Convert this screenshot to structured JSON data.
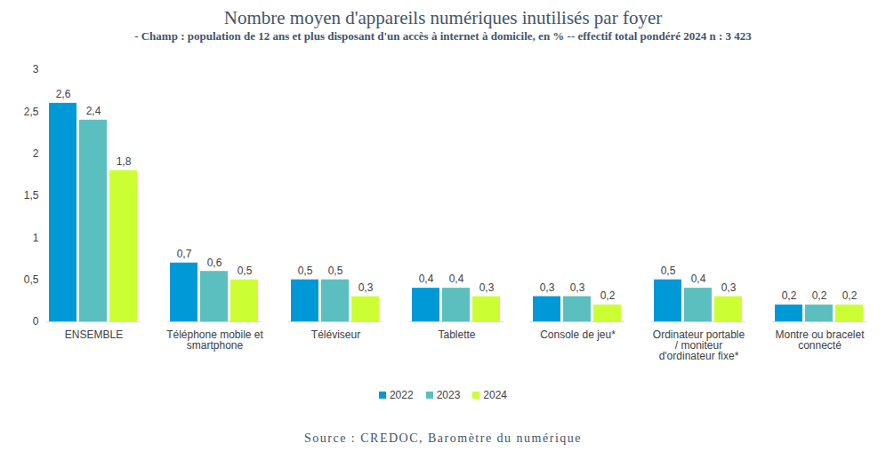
{
  "chart_data": {
    "type": "bar",
    "title": "Nombre moyen d'appareils numériques inutilisés par foyer",
    "subtitle": "- Champ : population de 12 ans et plus disposant d'un accès à internet à domicile, en % -- effectif total pondéré 2024 n : 3 423",
    "source": "Source : CREDOC, Baromètre du numérique",
    "categories": [
      "ENSEMBLE",
      "Téléphone mobile et smartphone",
      "Téléviseur",
      "Tablette",
      "Console de jeu*",
      "Ordinateur portable / moniteur d'ordinateur fixe*",
      "Montre ou bracelet connecté"
    ],
    "series": [
      {
        "name": "2022",
        "color": "#0099d8",
        "values": [
          2.6,
          0.7,
          0.5,
          0.4,
          0.3,
          0.5,
          0.2
        ],
        "value_labels": [
          "2,6",
          "0,7",
          "0,5",
          "0,4",
          "0,3",
          "0,5",
          "0,2"
        ]
      },
      {
        "name": "2023",
        "color": "#5bbfbf",
        "values": [
          2.4,
          0.6,
          0.5,
          0.4,
          0.3,
          0.4,
          0.2
        ],
        "value_labels": [
          "2,4",
          "0,6",
          "0,5",
          "0,4",
          "0,3",
          "0,4",
          "0,2"
        ]
      },
      {
        "name": "2024",
        "color": "#ccff33",
        "values": [
          1.8,
          0.5,
          0.3,
          0.3,
          0.2,
          0.3,
          0.2
        ],
        "value_labels": [
          "1,8",
          "0,5",
          "0,3",
          "0,3",
          "0,2",
          "0,3",
          "0,2"
        ]
      }
    ],
    "ylim": [
      0,
      3
    ],
    "yticks": [
      0,
      {
        "value": 0.5,
        "label": "0,5"
      },
      1,
      {
        "value": 1.5,
        "label": "1,5"
      },
      2,
      {
        "value": 2.5,
        "label": "2,5"
      },
      3
    ],
    "grid": false,
    "legend": "bottom",
    "data_labels": true
  }
}
